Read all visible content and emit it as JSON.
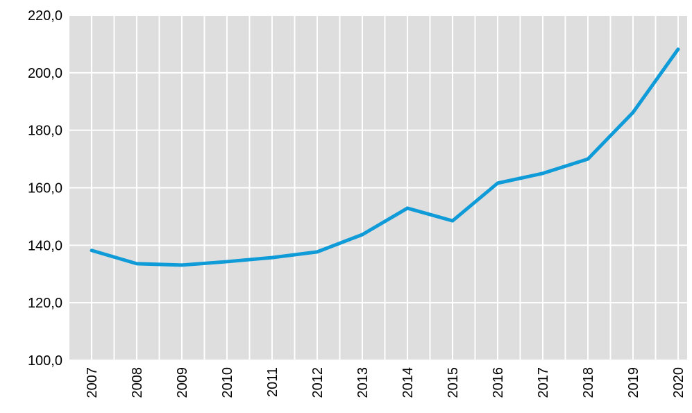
{
  "chart_data": {
    "type": "line",
    "categories": [
      "2007",
      "2008",
      "2009",
      "2010",
      "2011",
      "2012",
      "2013",
      "2014",
      "2015",
      "2016",
      "2017",
      "2018",
      "2019",
      "2020"
    ],
    "series": [
      {
        "color": "#0e9bd8",
        "values": [
          138.2,
          133.6,
          133.1,
          134.3,
          135.7,
          137.7,
          143.7,
          152.9,
          148.5,
          161.6,
          165.0,
          170.0,
          186.2,
          208.2
        ]
      }
    ],
    "ylim": [
      100,
      220
    ],
    "yticks": [
      {
        "value": 100,
        "label": "100,0"
      },
      {
        "value": 120,
        "label": "120,0"
      },
      {
        "value": 140,
        "label": "140,0"
      },
      {
        "value": 160,
        "label": "160,0"
      },
      {
        "value": 180,
        "label": "180,0"
      },
      {
        "value": 200,
        "label": "200,0"
      },
      {
        "value": 220,
        "label": "220,0"
      }
    ],
    "grid": true
  }
}
